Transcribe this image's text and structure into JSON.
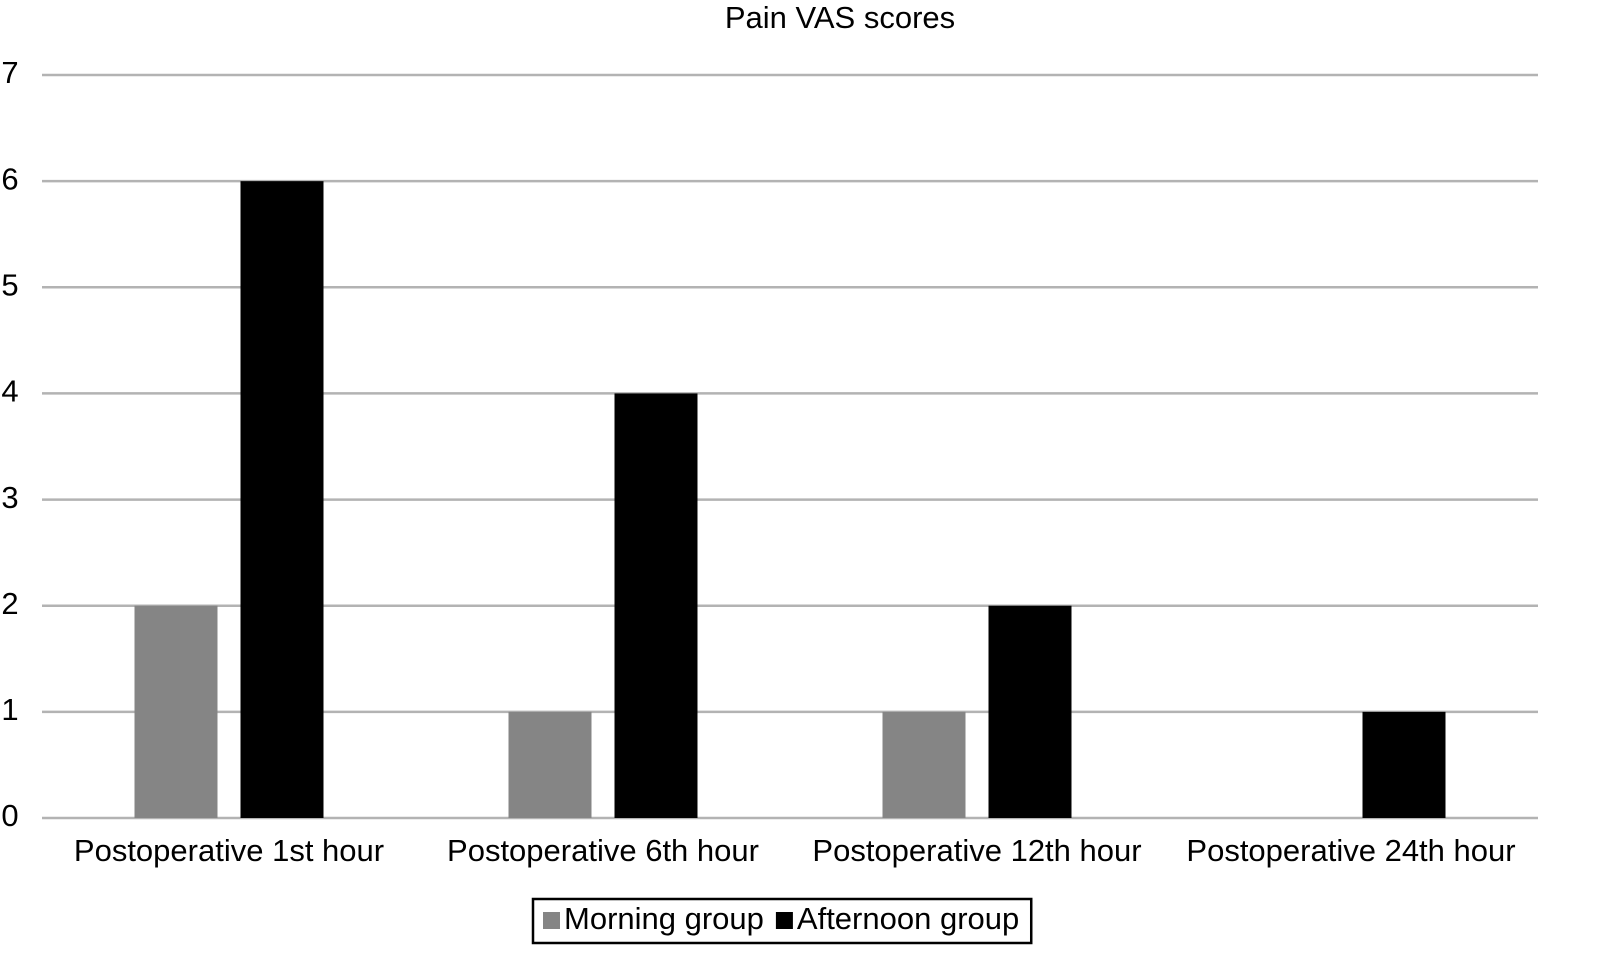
{
  "chart_data": {
    "type": "bar",
    "title": "Pain VAS scores",
    "categories": [
      "Postoperative 1st hour",
      "Postoperative 6th hour",
      "Postoperative 12th hour",
      "Postoperative 24th hour"
    ],
    "series": [
      {
        "name": "Morning group",
        "color": "#858585",
        "values": [
          2,
          1,
          1,
          0
        ]
      },
      {
        "name": "Afternoon group",
        "color": "#000000",
        "values": [
          6,
          4,
          2,
          1
        ]
      }
    ],
    "ylim": [
      0,
      7
    ],
    "yticks": [
      0,
      1,
      2,
      3,
      4,
      5,
      6,
      7
    ],
    "grid": true,
    "legend": "bottom"
  }
}
